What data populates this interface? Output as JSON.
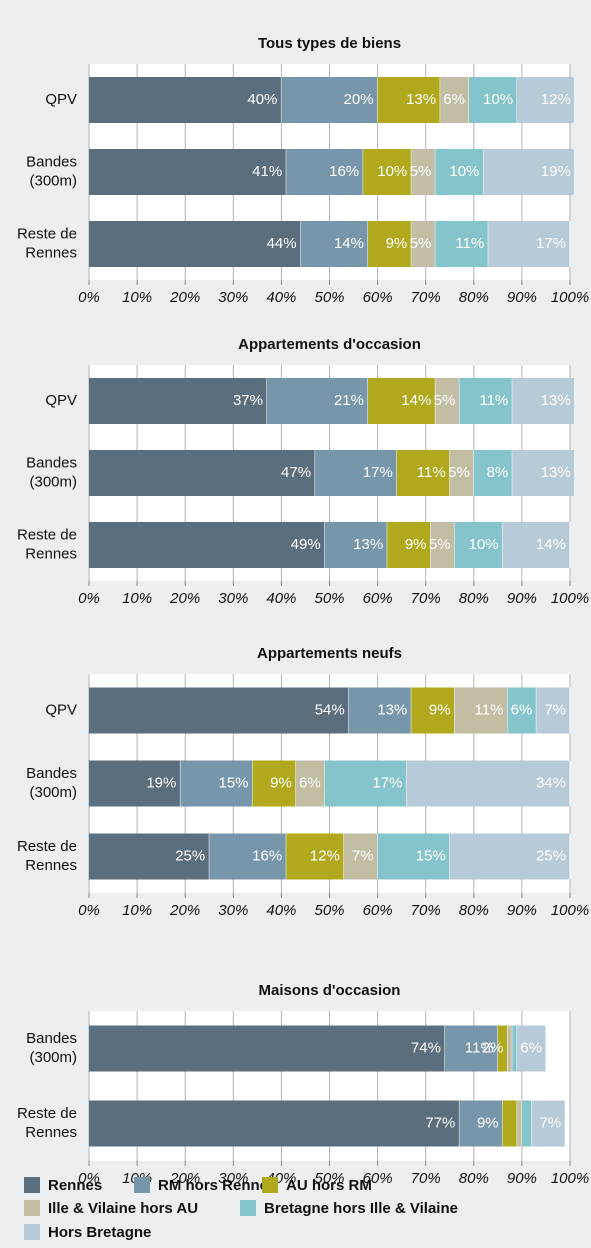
{
  "chart_data": [
    {
      "type": "bar",
      "orientation": "horizontal",
      "stacked": true,
      "title": "Tous types de biens",
      "categories": [
        "QPV",
        "Bandes\n(300m)",
        "Reste de\nRennes"
      ],
      "xlim": [
        0,
        100
      ],
      "xticks": [
        {
          "value": 0,
          "label": "0%"
        },
        {
          "value": 10,
          "label": "10%"
        },
        {
          "value": 20,
          "label": "20%"
        },
        {
          "value": 30,
          "label": "30%"
        },
        {
          "value": 40,
          "label": "40%"
        },
        {
          "value": 50,
          "label": "50%"
        },
        {
          "value": 60,
          "label": "60%"
        },
        {
          "value": 70,
          "label": "70%"
        },
        {
          "value": 80,
          "label": "80%"
        },
        {
          "value": 90,
          "label": "90%"
        },
        {
          "value": 100,
          "label": "100%"
        }
      ],
      "grid": true,
      "series": [
        {
          "name": "Rennes",
          "color": "#5a6e7e",
          "values": [
            40,
            41,
            44
          ],
          "value_labels": [
            "40%",
            "41%",
            "44%"
          ]
        },
        {
          "name": "RM hors Rennes",
          "color": "#7896aa",
          "values": [
            20,
            16,
            14
          ],
          "value_labels": [
            "20%",
            "16%",
            "14%"
          ]
        },
        {
          "name": "AU hors RM",
          "color": "#b0a91e",
          "values": [
            13,
            10,
            9
          ],
          "value_labels": [
            "13%",
            "10%",
            "9%"
          ]
        },
        {
          "name": "Ille & Vilaine hors AU",
          "color": "#c2bea4",
          "values": [
            6,
            5,
            5
          ],
          "value_labels": [
            "6%",
            "5%",
            "5%"
          ]
        },
        {
          "name": "Bretagne hors Ille & Vilaine",
          "color": "#85c4cb",
          "values": [
            10,
            10,
            11
          ],
          "value_labels": [
            "10%",
            "10%",
            "11%"
          ]
        },
        {
          "name": "Hors Bretagne",
          "color": "#b7cad7",
          "values": [
            12,
            19,
            17
          ],
          "value_labels": [
            "12%",
            "19%",
            "17%"
          ]
        }
      ]
    },
    {
      "type": "bar",
      "orientation": "horizontal",
      "stacked": true,
      "title": "Appartements d'occasion",
      "categories": [
        "QPV",
        "Bandes\n(300m)",
        "Reste de\nRennes"
      ],
      "xlim": [
        0,
        100
      ],
      "xticks": [
        {
          "value": 0,
          "label": "0%"
        },
        {
          "value": 10,
          "label": "10%"
        },
        {
          "value": 20,
          "label": "20%"
        },
        {
          "value": 30,
          "label": "30%"
        },
        {
          "value": 40,
          "label": "40%"
        },
        {
          "value": 50,
          "label": "50%"
        },
        {
          "value": 60,
          "label": "60%"
        },
        {
          "value": 70,
          "label": "70%"
        },
        {
          "value": 80,
          "label": "80%"
        },
        {
          "value": 90,
          "label": "90%"
        },
        {
          "value": 100,
          "label": "100%"
        }
      ],
      "grid": true,
      "series": [
        {
          "name": "Rennes",
          "color": "#5a6e7e",
          "values": [
            37,
            47,
            49
          ],
          "value_labels": [
            "37%",
            "47%",
            "49%"
          ]
        },
        {
          "name": "RM hors Rennes",
          "color": "#7896aa",
          "values": [
            21,
            17,
            13
          ],
          "value_labels": [
            "21%",
            "17%",
            "13%"
          ]
        },
        {
          "name": "AU hors RM",
          "color": "#b0a91e",
          "values": [
            14,
            11,
            9
          ],
          "value_labels": [
            "14%",
            "11%",
            "9%"
          ]
        },
        {
          "name": "Ille & Vilaine hors AU",
          "color": "#c2bea4",
          "values": [
            5,
            5,
            5
          ],
          "value_labels": [
            "5%",
            "5%",
            "5%"
          ]
        },
        {
          "name": "Bretagne hors Ille & Vilaine",
          "color": "#85c4cb",
          "values": [
            11,
            8,
            10
          ],
          "value_labels": [
            "11%",
            "8%",
            "10%"
          ]
        },
        {
          "name": "Hors Bretagne",
          "color": "#b7cad7",
          "values": [
            13,
            13,
            14
          ],
          "value_labels": [
            "13%",
            "13%",
            "14%"
          ]
        }
      ]
    },
    {
      "type": "bar",
      "orientation": "horizontal",
      "stacked": true,
      "title": "Appartements neufs",
      "categories": [
        "QPV",
        "Bandes\n(300m)",
        "Reste de\nRennes"
      ],
      "xlim": [
        0,
        100
      ],
      "xticks": [
        {
          "value": 0,
          "label": "0%"
        },
        {
          "value": 10,
          "label": "10%"
        },
        {
          "value": 20,
          "label": "20%"
        },
        {
          "value": 30,
          "label": "30%"
        },
        {
          "value": 40,
          "label": "40%"
        },
        {
          "value": 50,
          "label": "50%"
        },
        {
          "value": 60,
          "label": "60%"
        },
        {
          "value": 70,
          "label": "70%"
        },
        {
          "value": 80,
          "label": "80%"
        },
        {
          "value": 90,
          "label": "90%"
        },
        {
          "value": 100,
          "label": "100%"
        }
      ],
      "grid": true,
      "series": [
        {
          "name": "Rennes",
          "color": "#5a6e7e",
          "values": [
            54,
            19,
            25
          ],
          "value_labels": [
            "54%",
            "19%",
            "25%"
          ]
        },
        {
          "name": "RM hors Rennes",
          "color": "#7896aa",
          "values": [
            13,
            15,
            16
          ],
          "value_labels": [
            "13%",
            "15%",
            "16%"
          ]
        },
        {
          "name": "AU hors RM",
          "color": "#b0a91e",
          "values": [
            9,
            9,
            12
          ],
          "value_labels": [
            "9%",
            "9%",
            "12%"
          ]
        },
        {
          "name": "Ille & Vilaine hors AU",
          "color": "#c2bea4",
          "values": [
            11,
            6,
            7
          ],
          "value_labels": [
            "11%",
            "6%",
            "7%"
          ]
        },
        {
          "name": "Bretagne hors Ille & Vilaine",
          "color": "#85c4cb",
          "values": [
            6,
            17,
            15
          ],
          "value_labels": [
            "6%",
            "17%",
            "15%"
          ]
        },
        {
          "name": "Hors Bretagne",
          "color": "#b7cad7",
          "values": [
            7,
            34,
            25
          ],
          "value_labels": [
            "7%",
            "34%",
            "25%"
          ]
        }
      ]
    },
    {
      "type": "bar",
      "orientation": "horizontal",
      "stacked": true,
      "title": "Maisons d'occasion",
      "categories": [
        "Bandes\n(300m)",
        "Reste de\nRennes"
      ],
      "xlim": [
        0,
        100
      ],
      "xticks": [
        {
          "value": 0,
          "label": "0%"
        },
        {
          "value": 10,
          "label": "10%"
        },
        {
          "value": 20,
          "label": "20%"
        },
        {
          "value": 30,
          "label": "30%"
        },
        {
          "value": 40,
          "label": "40%"
        },
        {
          "value": 50,
          "label": "50%"
        },
        {
          "value": 60,
          "label": "60%"
        },
        {
          "value": 70,
          "label": "70%"
        },
        {
          "value": 80,
          "label": "80%"
        },
        {
          "value": 90,
          "label": "90%"
        },
        {
          "value": 100,
          "label": "100%"
        }
      ],
      "grid": true,
      "series": [
        {
          "name": "Rennes",
          "color": "#5a6e7e",
          "values": [
            74,
            77
          ],
          "value_labels": [
            "74%",
            "77%"
          ]
        },
        {
          "name": "RM hors Rennes",
          "color": "#7896aa",
          "values": [
            11,
            9
          ],
          "value_labels": [
            "11%",
            "9%"
          ]
        },
        {
          "name": "AU hors RM",
          "color": "#b0a91e",
          "values": [
            2,
            3
          ],
          "value_labels": [
            "2%",
            null
          ]
        },
        {
          "name": "Ille & Vilaine hors AU",
          "color": "#c2bea4",
          "values": [
            1,
            1
          ],
          "value_labels": [
            null,
            null
          ]
        },
        {
          "name": "Bretagne hors Ille & Vilaine",
          "color": "#85c4cb",
          "values": [
            1,
            2
          ],
          "value_labels": [
            null,
            null
          ]
        },
        {
          "name": "Hors Bretagne",
          "color": "#b7cad7",
          "values": [
            6,
            7
          ],
          "value_labels": [
            "6%",
            "7%"
          ]
        }
      ]
    }
  ]
}
